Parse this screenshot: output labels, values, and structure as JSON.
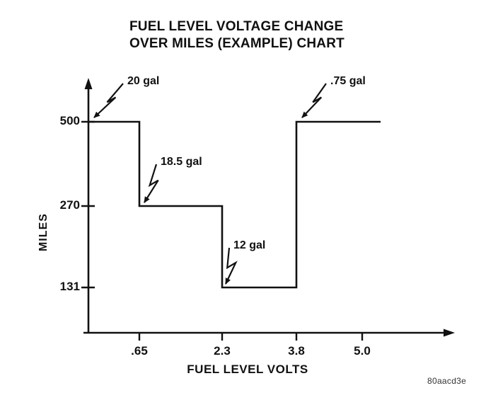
{
  "title": {
    "line1": "FUEL LEVEL VOLTAGE CHANGE",
    "line2": "OVER MILES (EXAMPLE) CHART"
  },
  "footer_code": "80aacd3e",
  "chart_data": {
    "type": "line",
    "subtype": "step",
    "title": "FUEL LEVEL VOLTAGE CHANGE OVER MILES (EXAMPLE) CHART",
    "xlabel": "FUEL LEVEL VOLTS",
    "ylabel": "MILES",
    "x_ticks": [
      ".65",
      "2.3",
      "3.8",
      "5.0"
    ],
    "y_ticks": [
      "500",
      "270",
      "131"
    ],
    "xlim": [
      0,
      5.5
    ],
    "ylim": [
      0,
      560
    ],
    "grid": false,
    "line_color": "#111111",
    "step_points": [
      {
        "volts": 0,
        "miles": 500
      },
      {
        "volts": 0.65,
        "miles": 500
      },
      {
        "volts": 0.65,
        "miles": 270
      },
      {
        "volts": 2.3,
        "miles": 270
      },
      {
        "volts": 2.3,
        "miles": 131
      },
      {
        "volts": 3.8,
        "miles": 131
      },
      {
        "volts": 3.8,
        "miles": 500
      },
      {
        "volts": 5.0,
        "miles": 500
      }
    ],
    "annotations": [
      {
        "label": "20 gal",
        "volts": 0,
        "miles": 500
      },
      {
        "label": "18.5 gal",
        "volts": 0.65,
        "miles": 270
      },
      {
        "label": "12 gal",
        "volts": 2.3,
        "miles": 131
      },
      {
        "label": ".75 gal",
        "volts": 3.8,
        "miles": 500
      }
    ]
  }
}
